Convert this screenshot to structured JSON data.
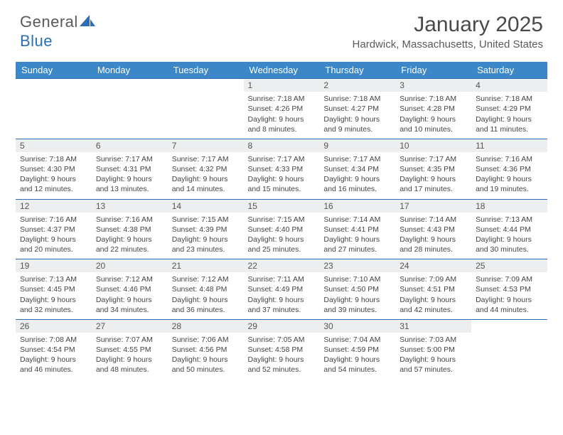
{
  "brand": {
    "name_part1": "General",
    "name_part2": "Blue"
  },
  "title": "January 2025",
  "location": "Hardwick, Massachusetts, United States",
  "colors": {
    "header_bg": "#3b87c8",
    "header_text": "#ffffff",
    "daynum_bg": "#eceeef",
    "rule": "#2a6fb5",
    "body_text": "#444444",
    "title_text": "#4a4a4a",
    "logo_gray": "#5a5a5a",
    "logo_blue": "#2a6fb5"
  },
  "day_headers": [
    "Sunday",
    "Monday",
    "Tuesday",
    "Wednesday",
    "Thursday",
    "Friday",
    "Saturday"
  ],
  "weeks": [
    [
      null,
      null,
      null,
      {
        "n": "1",
        "sr": "7:18 AM",
        "ss": "4:26 PM",
        "dl": "9 hours and 8 minutes."
      },
      {
        "n": "2",
        "sr": "7:18 AM",
        "ss": "4:27 PM",
        "dl": "9 hours and 9 minutes."
      },
      {
        "n": "3",
        "sr": "7:18 AM",
        "ss": "4:28 PM",
        "dl": "9 hours and 10 minutes."
      },
      {
        "n": "4",
        "sr": "7:18 AM",
        "ss": "4:29 PM",
        "dl": "9 hours and 11 minutes."
      }
    ],
    [
      {
        "n": "5",
        "sr": "7:18 AM",
        "ss": "4:30 PM",
        "dl": "9 hours and 12 minutes."
      },
      {
        "n": "6",
        "sr": "7:17 AM",
        "ss": "4:31 PM",
        "dl": "9 hours and 13 minutes."
      },
      {
        "n": "7",
        "sr": "7:17 AM",
        "ss": "4:32 PM",
        "dl": "9 hours and 14 minutes."
      },
      {
        "n": "8",
        "sr": "7:17 AM",
        "ss": "4:33 PM",
        "dl": "9 hours and 15 minutes."
      },
      {
        "n": "9",
        "sr": "7:17 AM",
        "ss": "4:34 PM",
        "dl": "9 hours and 16 minutes."
      },
      {
        "n": "10",
        "sr": "7:17 AM",
        "ss": "4:35 PM",
        "dl": "9 hours and 17 minutes."
      },
      {
        "n": "11",
        "sr": "7:16 AM",
        "ss": "4:36 PM",
        "dl": "9 hours and 19 minutes."
      }
    ],
    [
      {
        "n": "12",
        "sr": "7:16 AM",
        "ss": "4:37 PM",
        "dl": "9 hours and 20 minutes."
      },
      {
        "n": "13",
        "sr": "7:16 AM",
        "ss": "4:38 PM",
        "dl": "9 hours and 22 minutes."
      },
      {
        "n": "14",
        "sr": "7:15 AM",
        "ss": "4:39 PM",
        "dl": "9 hours and 23 minutes."
      },
      {
        "n": "15",
        "sr": "7:15 AM",
        "ss": "4:40 PM",
        "dl": "9 hours and 25 minutes."
      },
      {
        "n": "16",
        "sr": "7:14 AM",
        "ss": "4:41 PM",
        "dl": "9 hours and 27 minutes."
      },
      {
        "n": "17",
        "sr": "7:14 AM",
        "ss": "4:43 PM",
        "dl": "9 hours and 28 minutes."
      },
      {
        "n": "18",
        "sr": "7:13 AM",
        "ss": "4:44 PM",
        "dl": "9 hours and 30 minutes."
      }
    ],
    [
      {
        "n": "19",
        "sr": "7:13 AM",
        "ss": "4:45 PM",
        "dl": "9 hours and 32 minutes."
      },
      {
        "n": "20",
        "sr": "7:12 AM",
        "ss": "4:46 PM",
        "dl": "9 hours and 34 minutes."
      },
      {
        "n": "21",
        "sr": "7:12 AM",
        "ss": "4:48 PM",
        "dl": "9 hours and 36 minutes."
      },
      {
        "n": "22",
        "sr": "7:11 AM",
        "ss": "4:49 PM",
        "dl": "9 hours and 37 minutes."
      },
      {
        "n": "23",
        "sr": "7:10 AM",
        "ss": "4:50 PM",
        "dl": "9 hours and 39 minutes."
      },
      {
        "n": "24",
        "sr": "7:09 AM",
        "ss": "4:51 PM",
        "dl": "9 hours and 42 minutes."
      },
      {
        "n": "25",
        "sr": "7:09 AM",
        "ss": "4:53 PM",
        "dl": "9 hours and 44 minutes."
      }
    ],
    [
      {
        "n": "26",
        "sr": "7:08 AM",
        "ss": "4:54 PM",
        "dl": "9 hours and 46 minutes."
      },
      {
        "n": "27",
        "sr": "7:07 AM",
        "ss": "4:55 PM",
        "dl": "9 hours and 48 minutes."
      },
      {
        "n": "28",
        "sr": "7:06 AM",
        "ss": "4:56 PM",
        "dl": "9 hours and 50 minutes."
      },
      {
        "n": "29",
        "sr": "7:05 AM",
        "ss": "4:58 PM",
        "dl": "9 hours and 52 minutes."
      },
      {
        "n": "30",
        "sr": "7:04 AM",
        "ss": "4:59 PM",
        "dl": "9 hours and 54 minutes."
      },
      {
        "n": "31",
        "sr": "7:03 AM",
        "ss": "5:00 PM",
        "dl": "9 hours and 57 minutes."
      },
      null
    ]
  ],
  "labels": {
    "sunrise": "Sunrise:",
    "sunset": "Sunset:",
    "daylight": "Daylight:"
  }
}
